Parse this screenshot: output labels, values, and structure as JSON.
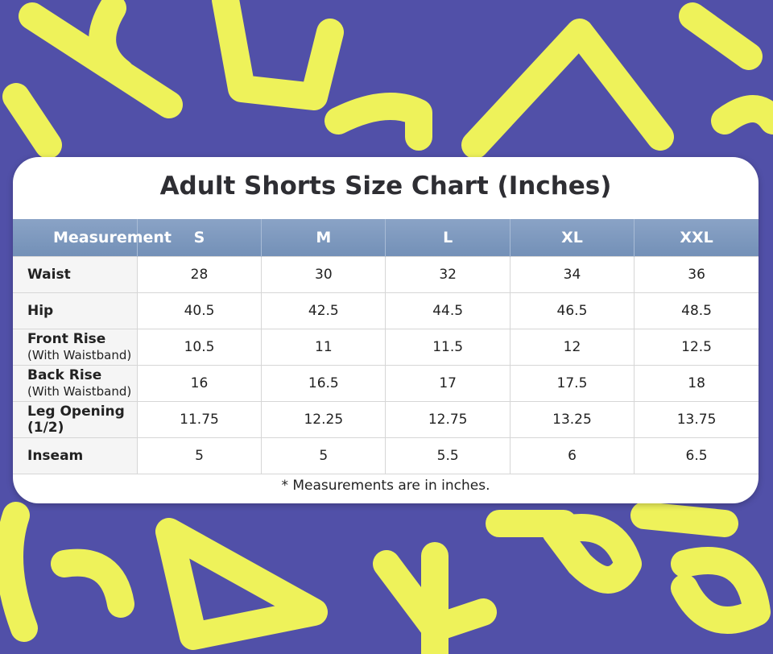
{
  "title": "Adult Shorts Size Chart (Inches)",
  "table": {
    "header": [
      "Measurement",
      "S",
      "M",
      "L",
      "XL",
      "XXL"
    ],
    "rows": [
      {
        "label": "Waist",
        "note": null,
        "values": [
          "28",
          "30",
          "32",
          "34",
          "36"
        ]
      },
      {
        "label": "Hip",
        "note": null,
        "values": [
          "40.5",
          "42.5",
          "44.5",
          "46.5",
          "48.5"
        ]
      },
      {
        "label": "Front Rise",
        "note": "(With Waistband)",
        "values": [
          "10.5",
          "11",
          "11.5",
          "12",
          "12.5"
        ]
      },
      {
        "label": "Back Rise",
        "note": "(With Waistband)",
        "values": [
          "16",
          "16.5",
          "17",
          "17.5",
          "18"
        ]
      },
      {
        "label": "Leg Opening (1/2)",
        "note": null,
        "values": [
          "11.75",
          "12.25",
          "12.75",
          "13.25",
          "13.75"
        ]
      },
      {
        "label": "Inseam",
        "note": null,
        "values": [
          "5",
          "5",
          "5.5",
          "6",
          "6.5"
        ]
      }
    ]
  },
  "footnote": "* Measurements are in inches."
}
